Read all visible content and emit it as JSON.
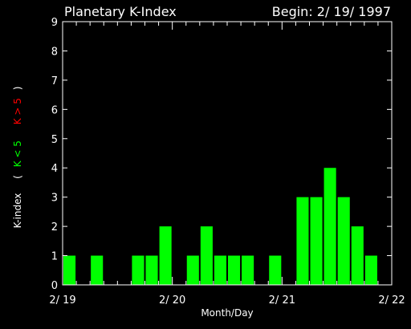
{
  "header": {
    "title": "Planetary K-Index",
    "begin": "Begin: 2/ 19/ 1997"
  },
  "ylabel_parts": {
    "name": "K-index",
    "open": "(",
    "low": "K < 5",
    "high": "K > 5",
    "close": ")"
  },
  "colors": {
    "background": "#000000",
    "axis": "#ffffff",
    "bar": "#00ff00",
    "low_label": "#00ff00",
    "high_label": "#ff0000"
  },
  "chart_data": {
    "type": "bar",
    "title": "Planetary K-Index",
    "xlabel": "Month/Day",
    "ylabel": "K-index",
    "ylim": [
      0,
      9
    ],
    "yticks": [
      "0",
      "1",
      "2",
      "3",
      "4",
      "5",
      "6",
      "7",
      "8",
      "9"
    ],
    "xtick_labels": [
      "2/ 19",
      "2/ 20",
      "2/ 21",
      "2/ 22"
    ],
    "interval_hours": 3,
    "values": [
      1,
      0,
      1,
      0,
      0,
      1,
      1,
      2,
      0,
      1,
      2,
      1,
      1,
      1,
      0,
      1,
      0,
      3,
      3,
      4,
      3,
      2,
      1,
      0
    ],
    "grid": false
  }
}
